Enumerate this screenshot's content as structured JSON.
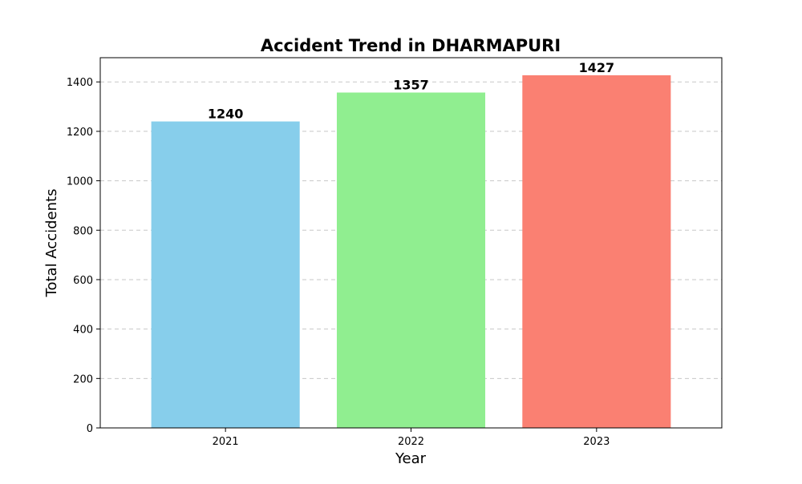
{
  "chart_data": {
    "type": "bar",
    "title": "Accident Trend in DHARMAPURI",
    "xlabel": "Year",
    "ylabel": "Total Accidents",
    "categories": [
      "2021",
      "2022",
      "2023"
    ],
    "values": [
      1240,
      1357,
      1427
    ],
    "value_labels": [
      "1240",
      "1357",
      "1427"
    ],
    "colors": [
      "#87ceeb",
      "#90ee90",
      "#fa8072"
    ],
    "ylim": [
      0,
      1498
    ],
    "yticks": [
      0,
      200,
      400,
      600,
      800,
      1000,
      1200,
      1400
    ],
    "ytick_labels": [
      "0",
      "200",
      "400",
      "600",
      "800",
      "1000",
      "1200",
      "1400"
    ],
    "grid": "y-axis dashed",
    "legend": "none"
  }
}
